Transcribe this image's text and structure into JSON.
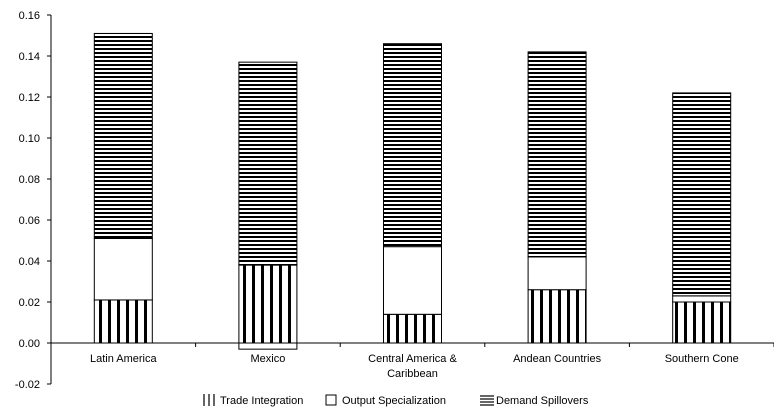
{
  "chart_data": {
    "type": "bar",
    "stacked": true,
    "categories": [
      [
        "Latin America"
      ],
      [
        "Mexico"
      ],
      [
        "Central America &",
        "Caribbean"
      ],
      [
        "Andean Countries"
      ],
      [
        "Southern Cone"
      ]
    ],
    "series": [
      {
        "name": "Trade Integration",
        "pattern": "vertical-lines",
        "values": [
          0.021,
          0.038,
          0.014,
          0.026,
          0.02
        ]
      },
      {
        "name": "Output Specialization",
        "pattern": "blank",
        "values": [
          0.03,
          -0.003,
          0.033,
          0.016,
          0.003
        ]
      },
      {
        "name": "Demand Spillovers",
        "pattern": "horizontal-lines",
        "values": [
          0.1,
          0.099,
          0.099,
          0.1,
          0.099
        ]
      }
    ],
    "y_ticks": [
      "0.16",
      "0.14",
      "0.12",
      "0.10",
      "0.08",
      "0.06",
      "0.04",
      "0.02",
      "0.00",
      "-0.02"
    ],
    "ylim": [
      -0.02,
      0.16
    ],
    "title": "",
    "xlabel": "",
    "ylabel": "",
    "legend_position": "bottom",
    "grid": false,
    "colors": {
      "stroke": "#000000",
      "fill": "#ffffff"
    }
  }
}
